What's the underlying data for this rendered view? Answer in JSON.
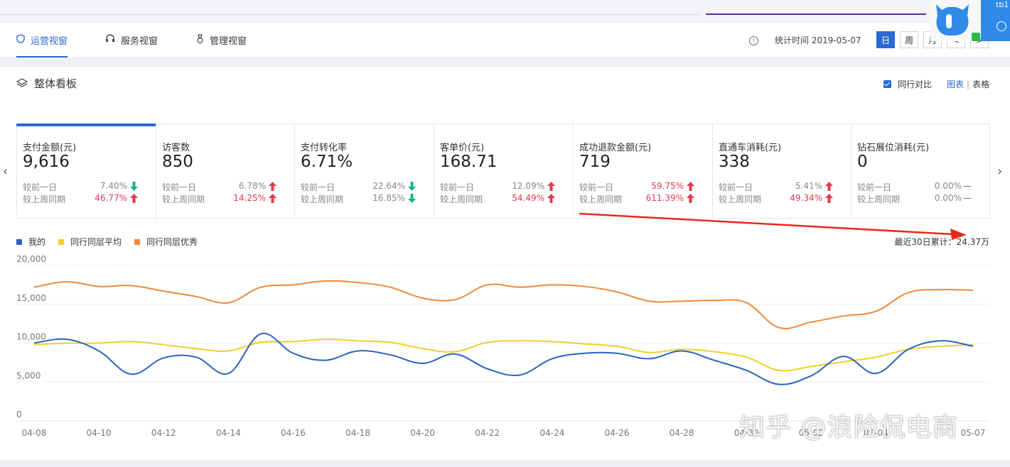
{
  "tabs": [
    {
      "label": "运营视窗",
      "icon": "shield-icon",
      "active": true
    },
    {
      "label": "服务视窗",
      "icon": "headset-icon",
      "active": false
    },
    {
      "label": "管理视窗",
      "icon": "medal-icon",
      "active": false
    }
  ],
  "header": {
    "stat_time": "统计时间 2019-05-07",
    "periods": [
      "日",
      "周",
      "月",
      "<",
      ">"
    ],
    "active_period": "日"
  },
  "user": {
    "name": "tb1"
  },
  "panel": {
    "title": "整体看板",
    "compare_label": "同行对比",
    "view_chart": "图表",
    "view_table": "表格"
  },
  "metrics": [
    {
      "name": "支付金额(元)",
      "value": "9,616",
      "day_label": "较前一日",
      "day_pct": "7.40%",
      "day_dir": "down",
      "week_label": "较上周同期",
      "week_pct": "46.77%",
      "week_dir": "up"
    },
    {
      "name": "访客数",
      "value": "850",
      "day_label": "较前一日",
      "day_pct": "6.78%",
      "day_dir": "up",
      "week_label": "较上周同期",
      "week_pct": "14.25%",
      "week_dir": "up"
    },
    {
      "name": "支付转化率",
      "value": "6.71%",
      "day_label": "较前一日",
      "day_pct": "22.64%",
      "day_dir": "down",
      "week_label": "较上周同期",
      "week_pct": "16.85%",
      "week_dir": "down"
    },
    {
      "name": "客单价(元)",
      "value": "168.71",
      "day_label": "较前一日",
      "day_pct": "12.09%",
      "day_dir": "up",
      "week_label": "较上周同期",
      "week_pct": "54.49%",
      "week_dir": "up"
    },
    {
      "name": "成功退款金额(元)",
      "value": "719",
      "day_label": "较前一日",
      "day_pct": "59.75%",
      "day_dir": "up",
      "week_label": "较上周同期",
      "week_pct": "611.39%",
      "week_dir": "up"
    },
    {
      "name": "直通车消耗(元)",
      "value": "338",
      "day_label": "较前一日",
      "day_pct": "5.41%",
      "day_dir": "up",
      "week_label": "较上周同期",
      "week_pct": "49.34%",
      "week_dir": "up"
    },
    {
      "name": "钻石展位消耗(元)",
      "value": "0",
      "day_label": "较前一日",
      "day_pct": "0.00%",
      "day_dir": "flat",
      "week_label": "较上周同期",
      "week_pct": "0.00%",
      "week_dir": "flat"
    }
  ],
  "colors": {
    "up": "#e23b4b",
    "down": "#19b38a",
    "accent": "#2b6ad0",
    "annotation_arrow": "#e8291c"
  },
  "total_label": "最近30日累计：24.37万",
  "watermark": "知乎 @浪险侃电商",
  "chart_data": {
    "type": "line",
    "title": "",
    "xlabel": "",
    "ylabel": "",
    "ylim": [
      0,
      20000
    ],
    "y_ticks": [
      "0",
      "5,000",
      "10,000",
      "15,000",
      "20,000"
    ],
    "x_tick_labels": [
      "04-08",
      "04-10",
      "04-12",
      "04-14",
      "04-16",
      "04-18",
      "04-20",
      "04-22",
      "04-24",
      "04-26",
      "04-28",
      "04-30",
      "05-02",
      "05-04",
      "05-07"
    ],
    "x": [
      "04-08",
      "04-09",
      "04-10",
      "04-11",
      "04-12",
      "04-13",
      "04-14",
      "04-15",
      "04-16",
      "04-17",
      "04-18",
      "04-19",
      "04-20",
      "04-21",
      "04-22",
      "04-23",
      "04-24",
      "04-25",
      "04-26",
      "04-27",
      "04-28",
      "04-29",
      "04-30",
      "05-01",
      "05-02",
      "05-03",
      "05-04",
      "05-05",
      "05-06",
      "05-07"
    ],
    "series": [
      {
        "name": "我的",
        "color": "#2b62c4",
        "values": [
          10000,
          10500,
          9000,
          6000,
          8100,
          8200,
          6100,
          11200,
          8700,
          7800,
          9000,
          8500,
          7400,
          8600,
          6700,
          5900,
          8000,
          8700,
          8700,
          8000,
          9000,
          7800,
          6500,
          4700,
          5800,
          8300,
          6100,
          9200,
          10300,
          9600
        ]
      },
      {
        "name": "同行同层平均",
        "color": "#f0cf2a",
        "values": [
          9800,
          10000,
          10000,
          10200,
          9800,
          9300,
          9000,
          10100,
          10200,
          10500,
          10300,
          10100,
          9300,
          8900,
          10100,
          10300,
          10200,
          9900,
          9600,
          8800,
          9200,
          8900,
          8200,
          6500,
          7000,
          7600,
          8200,
          9200,
          9600,
          9800
        ]
      },
      {
        "name": "同行同层优秀",
        "color": "#ee8a3a",
        "values": [
          17200,
          17900,
          17300,
          17400,
          16700,
          16000,
          15200,
          17200,
          17500,
          18000,
          17800,
          17200,
          15800,
          15600,
          17500,
          17200,
          17500,
          17300,
          16600,
          15400,
          15400,
          15500,
          15200,
          12000,
          12700,
          13500,
          14100,
          16500,
          16900,
          16800
        ]
      }
    ]
  }
}
